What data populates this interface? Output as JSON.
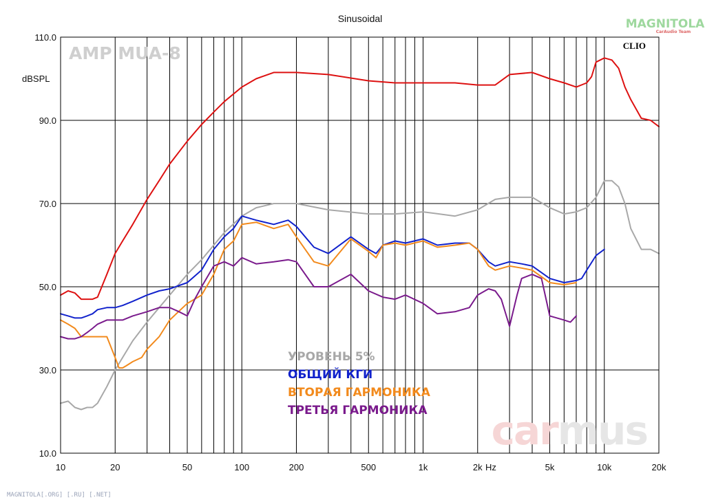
{
  "chart_data": {
    "type": "line",
    "title": "Sinusoidal",
    "ylabel": "dBSPL",
    "xlabel": "Hz",
    "x_scale": "log",
    "xlim": [
      10,
      20000
    ],
    "ylim": [
      10,
      110
    ],
    "grid": true,
    "y_ticks": [
      "10.0",
      "30.0",
      "50.0",
      "70.0",
      "90.0",
      "110.0"
    ],
    "x_ticks": [
      {
        "value": 10,
        "label": "10"
      },
      {
        "value": 20,
        "label": "20"
      },
      {
        "value": 50,
        "label": "50"
      },
      {
        "value": 100,
        "label": "100"
      },
      {
        "value": 200,
        "label": "200"
      },
      {
        "value": 500,
        "label": "500"
      },
      {
        "value": 1000,
        "label": "1k"
      },
      {
        "value": 2000,
        "label": "2k"
      },
      {
        "value": 5000,
        "label": "5k"
      },
      {
        "value": 10000,
        "label": "10k"
      },
      {
        "value": 20000,
        "label": "20k"
      }
    ],
    "annotations": {
      "product": "AMP MUA-8",
      "software": "CLIO"
    },
    "series": [
      {
        "color": "#dd1111",
        "x": [
          10,
          11,
          12,
          13,
          14,
          15,
          16,
          18,
          20,
          22,
          25,
          30,
          35,
          40,
          50,
          60,
          70,
          80,
          100,
          120,
          150,
          200,
          300,
          500,
          700,
          1000,
          1500,
          2000,
          2500,
          3000,
          4000,
          5000,
          6000,
          7000,
          8000,
          8500,
          9000,
          10000,
          11000,
          12000,
          13000,
          14000,
          16000,
          18000,
          20000
        ],
        "y": [
          48,
          49,
          48.5,
          47,
          47,
          47,
          47.5,
          53,
          58,
          61,
          65,
          71,
          75.5,
          79.5,
          85,
          89,
          92,
          94.5,
          98,
          100,
          101.5,
          101.5,
          101,
          99.5,
          99,
          99,
          99,
          98.5,
          98.5,
          101,
          101.5,
          100,
          99,
          98,
          99,
          100.5,
          104,
          105,
          104.5,
          102.5,
          98,
          95,
          90.5,
          90,
          88.5
        ]
      },
      {
        "color": "#a8a8a8",
        "x": [
          10,
          11,
          12,
          13,
          14,
          15,
          16,
          18,
          20,
          22,
          25,
          30,
          35,
          40,
          50,
          60,
          70,
          80,
          100,
          120,
          150,
          200,
          300,
          500,
          700,
          1000,
          1500,
          2000,
          2500,
          3000,
          4000,
          5000,
          6000,
          7000,
          8000,
          9000,
          10000,
          11000,
          12000,
          13000,
          14000,
          16000,
          18000,
          20000
        ],
        "y": [
          22,
          22.5,
          21,
          20.5,
          21,
          21,
          22,
          26,
          30,
          33,
          37,
          41.5,
          45,
          48,
          53,
          56.5,
          60,
          63,
          67,
          69,
          70,
          70,
          68.5,
          67.5,
          67.5,
          68,
          67,
          68.5,
          71,
          71.5,
          71.5,
          69,
          67.5,
          68,
          69,
          71.5,
          75.5,
          75.5,
          74,
          70,
          64,
          59,
          59,
          58
        ]
      },
      {
        "color": "#1122cc",
        "x": [
          10,
          11,
          12,
          13,
          14,
          15,
          16,
          18,
          20,
          22,
          25,
          30,
          35,
          40,
          50,
          60,
          70,
          80,
          90,
          100,
          120,
          150,
          180,
          200,
          250,
          300,
          400,
          500,
          550,
          600,
          700,
          800,
          1000,
          1200,
          1500,
          1800,
          2000,
          2300,
          2500,
          3000,
          3500,
          4000,
          5000,
          6000,
          7000,
          7500,
          8000,
          9000,
          10000
        ],
        "y": [
          43.5,
          43,
          42.5,
          42.5,
          43,
          43.5,
          44.5,
          45,
          45,
          45.5,
          46.5,
          48,
          49,
          49.5,
          51,
          54,
          59,
          62,
          64,
          67,
          66,
          65,
          66,
          64.5,
          59.5,
          58,
          62,
          59,
          58,
          60,
          61,
          60.5,
          61.5,
          60,
          60.5,
          60.5,
          59,
          56,
          55,
          56,
          55.5,
          55,
          52,
          51,
          51.5,
          52,
          54,
          57.5,
          59
        ]
      },
      {
        "color": "#f28a1c",
        "x": [
          10,
          11,
          12,
          13,
          14,
          15,
          16,
          18,
          20,
          21,
          22,
          23,
          25,
          28,
          30,
          35,
          40,
          50,
          60,
          70,
          80,
          90,
          100,
          120,
          150,
          180,
          200,
          250,
          300,
          400,
          500,
          550,
          600,
          700,
          800,
          1000,
          1200,
          1500,
          1800,
          2000,
          2300,
          2500,
          3000,
          3500,
          4000,
          5000,
          6000,
          7000
        ],
        "y": [
          42,
          41,
          40,
          38,
          38,
          38,
          38,
          38,
          33,
          30.5,
          30.5,
          31,
          32,
          33,
          35,
          38,
          42,
          46,
          48,
          53,
          59,
          61,
          65,
          65.5,
          64,
          65,
          62,
          56,
          55,
          61.5,
          58.5,
          57,
          60,
          60.5,
          60,
          61,
          59.5,
          60,
          60.5,
          59,
          55,
          54,
          55,
          54.5,
          54,
          51,
          50.5,
          51
        ]
      },
      {
        "color": "#7a1a8c",
        "x": [
          10,
          11,
          12,
          13,
          14,
          15,
          16,
          18,
          20,
          22,
          25,
          30,
          35,
          40,
          45,
          50,
          55,
          60,
          70,
          80,
          90,
          100,
          120,
          150,
          180,
          200,
          250,
          300,
          400,
          500,
          600,
          700,
          800,
          1000,
          1200,
          1500,
          1800,
          2000,
          2300,
          2500,
          2700,
          3000,
          3300,
          3500,
          4000,
          4500,
          5000,
          6000,
          6500,
          7000
        ],
        "y": [
          38,
          37.5,
          37.5,
          38,
          39,
          40,
          41,
          42,
          42,
          42,
          43,
          44,
          45,
          45,
          44,
          43,
          47,
          50,
          55,
          56,
          55,
          57,
          55.5,
          56,
          56.5,
          56,
          50,
          50,
          53,
          49,
          47.5,
          47,
          48,
          46,
          43.5,
          44,
          45,
          48,
          49.5,
          49,
          47,
          40.5,
          48,
          52,
          53,
          52,
          43,
          42,
          41.5,
          43
        ]
      }
    ],
    "legend": [
      {
        "label": "УРОВЕНЬ 5%",
        "color": "#a8a8a8"
      },
      {
        "label": "ОБЩИЙ КГИ",
        "color": "#1122cc"
      },
      {
        "label": "ВТОРАЯ ГАРМОНИКА",
        "color": "#f28a1c"
      },
      {
        "label": "ТРЕТЬЯ ГАРМОНИКА",
        "color": "#7a1a8c"
      }
    ]
  },
  "watermarks": {
    "carmus": "carmus",
    "magnitola": "MAGNITOLA",
    "magnitola_sub": "CarAudio Team",
    "footer": "MAGNITOLA[.ORG] [.RU] [.NET]"
  },
  "colors": {
    "grid": "#000000",
    "carmus_car": "#f6d6d6",
    "carmus_mus": "#e6e6e6",
    "magnitola": "#9ed89e"
  }
}
